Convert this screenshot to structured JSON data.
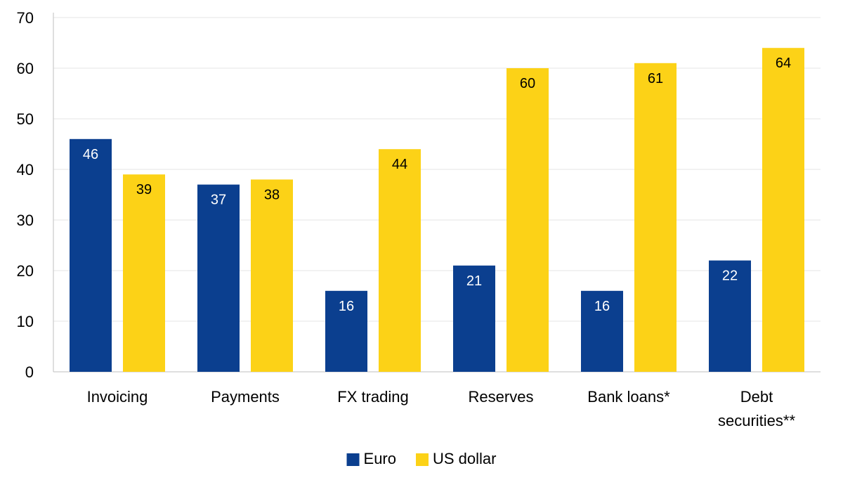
{
  "chart_data": {
    "type": "bar",
    "categories": [
      [
        "Invoicing"
      ],
      [
        "Payments"
      ],
      [
        "FX trading"
      ],
      [
        "Reserves"
      ],
      [
        "Bank loans*"
      ],
      [
        "Debt",
        "securities**"
      ]
    ],
    "series": [
      {
        "name": "Euro",
        "color": "#0b3f8f",
        "label_color": "#ffffff",
        "values": [
          46,
          37,
          16,
          21,
          16,
          22
        ]
      },
      {
        "name": "US dollar",
        "color": "#fcd217",
        "label_color": "#000000",
        "values": [
          39,
          38,
          44,
          60,
          61,
          64
        ]
      }
    ],
    "yticks": [
      0,
      10,
      20,
      30,
      40,
      50,
      60,
      70
    ],
    "ylim": [
      0,
      70
    ],
    "grid": true,
    "legend_position": "bottom-center"
  }
}
